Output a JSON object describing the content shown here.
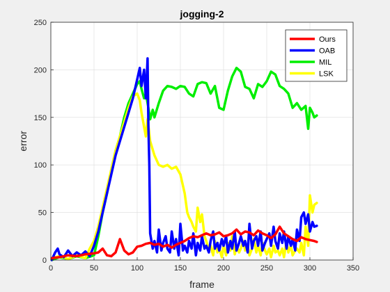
{
  "chart_data": {
    "type": "line",
    "title": "jogging-2",
    "xlabel": "frame",
    "ylabel": "error",
    "xlim": [
      0,
      350
    ],
    "ylim": [
      0,
      250
    ],
    "xticks": [
      0,
      50,
      100,
      150,
      200,
      250,
      300,
      350
    ],
    "yticks": [
      0,
      50,
      100,
      150,
      200,
      250
    ],
    "grid": true,
    "legend_position": "top-right",
    "series": [
      {
        "name": "Ours",
        "color": "#ff0000",
        "x": [
          1,
          10,
          20,
          30,
          40,
          50,
          55,
          60,
          65,
          70,
          75,
          80,
          85,
          90,
          95,
          100,
          105,
          110,
          115,
          120,
          125,
          130,
          135,
          140,
          145,
          150,
          155,
          160,
          165,
          170,
          175,
          180,
          185,
          190,
          195,
          200,
          205,
          210,
          215,
          220,
          225,
          230,
          235,
          240,
          245,
          250,
          255,
          260,
          265,
          270,
          275,
          280,
          285,
          290,
          295,
          300,
          305,
          308
        ],
        "y": [
          2,
          3,
          5,
          4,
          6,
          7,
          8,
          12,
          5,
          4,
          8,
          22,
          10,
          6,
          8,
          14,
          15,
          17,
          18,
          16,
          17,
          14,
          16,
          13,
          16,
          18,
          20,
          23,
          25,
          24,
          26,
          28,
          26,
          27,
          29,
          25,
          26,
          28,
          32,
          27,
          30,
          29,
          26,
          31,
          28,
          26,
          23,
          27,
          35,
          28,
          25,
          22,
          20,
          24,
          22,
          21,
          20,
          19
        ]
      },
      {
        "name": "OAB",
        "color": "#0000ff",
        "x": [
          1,
          5,
          8,
          10,
          15,
          20,
          25,
          30,
          35,
          40,
          45,
          50,
          55,
          60,
          65,
          70,
          75,
          80,
          85,
          90,
          95,
          100,
          103,
          105,
          108,
          110,
          112,
          113,
          114,
          115,
          118,
          120,
          123,
          125,
          128,
          130,
          133,
          135,
          138,
          140,
          143,
          145,
          148,
          150,
          153,
          155,
          158,
          160,
          163,
          165,
          168,
          170,
          173,
          175,
          178,
          180,
          183,
          185,
          188,
          190,
          193,
          195,
          198,
          200,
          203,
          205,
          208,
          210,
          213,
          215,
          218,
          220,
          223,
          225,
          228,
          230,
          233,
          235,
          238,
          240,
          243,
          245,
          248,
          250,
          253,
          255,
          258,
          260,
          263,
          265,
          268,
          270,
          273,
          275,
          278,
          280,
          283,
          285,
          288,
          290,
          293,
          295,
          298,
          300,
          303,
          305,
          308
        ],
        "y": [
          0,
          8,
          12,
          6,
          3,
          10,
          4,
          8,
          5,
          9,
          4,
          15,
          30,
          50,
          70,
          90,
          110,
          125,
          140,
          155,
          170,
          190,
          202,
          183,
          200,
          170,
          212,
          140,
          100,
          28,
          12,
          20,
          8,
          32,
          10,
          18,
          25,
          12,
          8,
          30,
          12,
          22,
          5,
          38,
          10,
          15,
          8,
          20,
          12,
          28,
          5,
          18,
          10,
          25,
          12,
          15,
          8,
          20,
          30,
          12,
          18,
          10,
          22,
          15,
          25,
          8,
          20,
          12,
          30,
          10,
          18,
          25,
          15,
          20,
          8,
          38,
          12,
          20,
          25,
          15,
          30,
          10,
          18,
          22,
          28,
          15,
          35,
          20,
          12,
          28,
          18,
          30,
          12,
          25,
          15,
          22,
          10,
          32,
          20,
          45,
          50,
          38,
          48,
          30,
          40,
          35,
          36
        ]
      },
      {
        "name": "MIL",
        "color": "#00ee00",
        "x": [
          1,
          10,
          20,
          30,
          40,
          50,
          55,
          60,
          65,
          70,
          75,
          80,
          85,
          90,
          95,
          100,
          103,
          105,
          108,
          110,
          113,
          115,
          118,
          120,
          125,
          130,
          135,
          140,
          145,
          150,
          155,
          160,
          165,
          170,
          175,
          180,
          185,
          190,
          195,
          200,
          205,
          210,
          215,
          220,
          225,
          230,
          235,
          240,
          245,
          250,
          255,
          260,
          265,
          270,
          275,
          280,
          285,
          290,
          295,
          298,
          300,
          303,
          305,
          308
        ],
        "y": [
          0,
          3,
          1,
          4,
          2,
          5,
          25,
          50,
          70,
          95,
          115,
          130,
          150,
          165,
          175,
          185,
          188,
          180,
          170,
          175,
          160,
          148,
          158,
          150,
          165,
          178,
          183,
          182,
          180,
          183,
          182,
          175,
          172,
          185,
          187,
          186,
          175,
          183,
          160,
          158,
          178,
          193,
          202,
          198,
          182,
          180,
          170,
          185,
          182,
          188,
          198,
          195,
          183,
          180,
          175,
          160,
          165,
          158,
          162,
          138,
          160,
          155,
          150,
          152
        ]
      },
      {
        "name": "LSK",
        "color": "#ffff00",
        "x": [
          1,
          10,
          20,
          30,
          40,
          45,
          50,
          55,
          60,
          65,
          70,
          75,
          80,
          85,
          90,
          95,
          100,
          103,
          105,
          108,
          110,
          112,
          115,
          120,
          125,
          130,
          135,
          140,
          145,
          150,
          155,
          158,
          160,
          163,
          165,
          168,
          170,
          173,
          175,
          178,
          180,
          183,
          185,
          188,
          190,
          193,
          195,
          198,
          200,
          203,
          205,
          208,
          210,
          213,
          215,
          218,
          220,
          223,
          225,
          228,
          230,
          233,
          235,
          238,
          240,
          243,
          245,
          248,
          250,
          253,
          255,
          258,
          260,
          263,
          265,
          268,
          270,
          273,
          275,
          278,
          280,
          283,
          285,
          288,
          290,
          293,
          295,
          298,
          300,
          303,
          305,
          308
        ],
        "y": [
          2,
          4,
          1,
          5,
          2,
          12,
          20,
          35,
          55,
          75,
          95,
          115,
          130,
          145,
          160,
          172,
          175,
          168,
          155,
          140,
          130,
          148,
          125,
          110,
          100,
          98,
          100,
          96,
          98,
          90,
          70,
          50,
          45,
          40,
          35,
          30,
          55,
          40,
          48,
          25,
          20,
          10,
          15,
          5,
          20,
          8,
          12,
          3,
          15,
          5,
          18,
          10,
          25,
          6,
          15,
          8,
          12,
          20,
          10,
          15,
          5,
          12,
          22,
          8,
          15,
          5,
          18,
          10,
          6,
          12,
          3,
          15,
          8,
          10,
          5,
          12,
          3,
          20,
          8,
          15,
          5,
          10,
          12,
          8,
          18,
          5,
          35,
          15,
          68,
          50,
          58,
          60
        ]
      }
    ]
  }
}
